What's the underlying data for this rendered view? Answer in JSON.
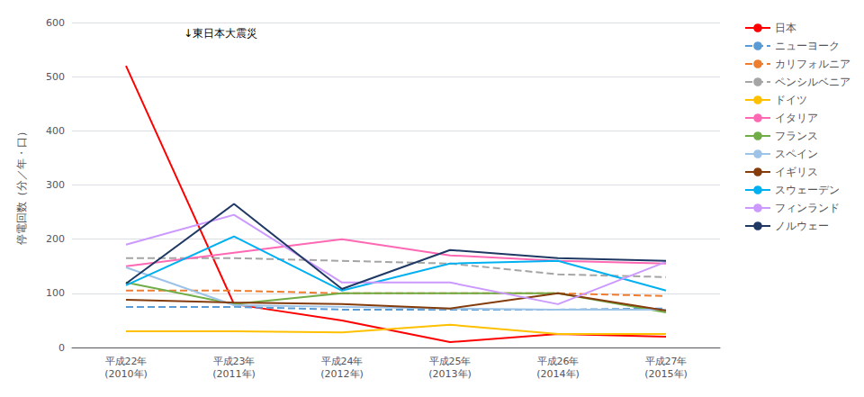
{
  "chart_data": {
    "type": "line",
    "ylabel": "停電回数（分／年・口）",
    "annotation": "↓東日本大震災",
    "categories": [
      "平成22年\n(2010年)",
      "平成23年\n(2011年)",
      "平成24年\n(2012年)",
      "平成25年\n(2013年)",
      "平成26年\n(2014年)",
      "平成27年\n(2015年)"
    ],
    "ylim": [
      0,
      600
    ],
    "yticks": [
      0,
      100,
      200,
      300,
      400,
      500,
      600
    ],
    "grid": true,
    "legend": "right",
    "series": [
      {
        "name": "日本",
        "color": "#FF0000",
        "line_style": "solid",
        "values": [
          520,
          80,
          50,
          10,
          25,
          20
        ]
      },
      {
        "name": "ニューヨーク",
        "color": "#5B9BD5",
        "line_style": "dashed",
        "values": [
          75,
          75,
          70,
          70,
          70,
          72
        ]
      },
      {
        "name": "カリフォルニア",
        "color": "#ED7D31",
        "line_style": "dashed",
        "values": [
          105,
          105,
          100,
          100,
          100,
          95
        ]
      },
      {
        "name": "ペンシルベニア",
        "color": "#A5A5A5",
        "line_style": "dashed",
        "values": [
          165,
          165,
          160,
          155,
          135,
          130
        ]
      },
      {
        "name": "ドイツ",
        "color": "#FFC000",
        "line_style": "solid",
        "values": [
          30,
          30,
          28,
          42,
          25,
          25
        ]
      },
      {
        "name": "イタリア",
        "color": "#FF69B4",
        "line_style": "solid",
        "values": [
          150,
          175,
          200,
          170,
          160,
          155
        ]
      },
      {
        "name": "フランス",
        "color": "#70AD47",
        "line_style": "solid",
        "values": [
          120,
          80,
          100,
          100,
          100,
          65
        ]
      },
      {
        "name": "スペイン",
        "color": "#9DC3E6",
        "line_style": "solid",
        "values": [
          148,
          78,
          75,
          72,
          70,
          70
        ]
      },
      {
        "name": "イギリス",
        "color": "#843C0C",
        "line_style": "solid",
        "values": [
          88,
          83,
          80,
          72,
          100,
          68
        ]
      },
      {
        "name": "スウェーデン",
        "color": "#00B0F0",
        "line_style": "solid",
        "values": [
          115,
          205,
          105,
          155,
          160,
          105
        ]
      },
      {
        "name": "フィンランド",
        "color": "#CC99FF",
        "line_style": "solid",
        "values": [
          190,
          245,
          120,
          120,
          80,
          158
        ]
      },
      {
        "name": "ノルウェー",
        "color": "#1F3864",
        "line_style": "solid",
        "values": [
          118,
          265,
          108,
          180,
          165,
          160
        ]
      }
    ]
  }
}
